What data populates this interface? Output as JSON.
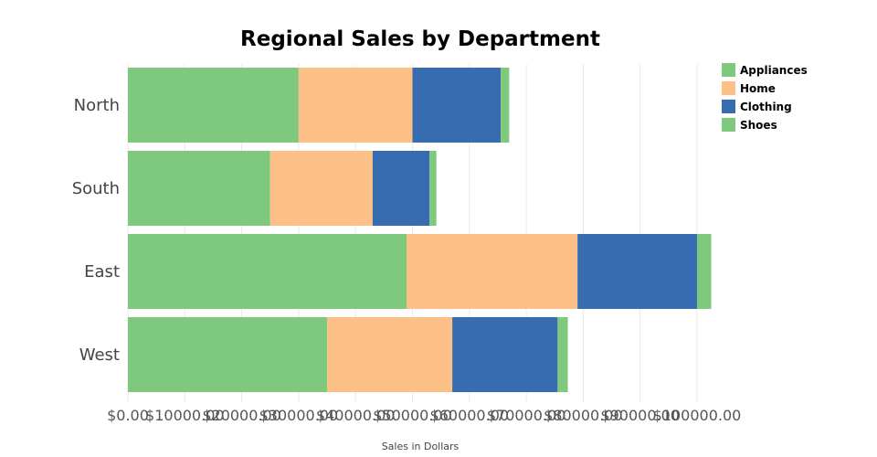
{
  "chart_data": {
    "type": "bar",
    "orientation": "horizontal",
    "stacked": true,
    "title": "Regional Sales by Department",
    "xlabel": "Sales in Dollars",
    "ylabel": "",
    "categories": [
      "North",
      "South",
      "East",
      "West"
    ],
    "series": [
      {
        "name": "Appliances",
        "color": "#7fc97f",
        "values": [
          30000,
          25000,
          49000,
          35000
        ]
      },
      {
        "name": "Home",
        "color": "#fdc086",
        "values": [
          20000,
          18000,
          30000,
          22000
        ]
      },
      {
        "name": "Clothing",
        "color": "#386cb0",
        "values": [
          15500,
          10000,
          21000,
          18500
        ]
      },
      {
        "name": "Shoes",
        "color": "#7fc97f",
        "values": [
          1500,
          1200,
          2500,
          1800
        ]
      }
    ],
    "xlim": [
      0,
      100000
    ],
    "xticks": [
      0,
      10000,
      20000,
      30000,
      40000,
      50000,
      60000,
      70000,
      80000,
      90000,
      100000
    ],
    "xtick_labels": [
      "$0.00",
      "$10000.00",
      "$20000.00",
      "$30000.00",
      "$40000.00",
      "$50000.00",
      "$60000.00",
      "$70000.00",
      "$80000.00",
      "$90000.00",
      "$100000.00"
    ],
    "grid": "vertical",
    "legend_position": "top-right"
  }
}
